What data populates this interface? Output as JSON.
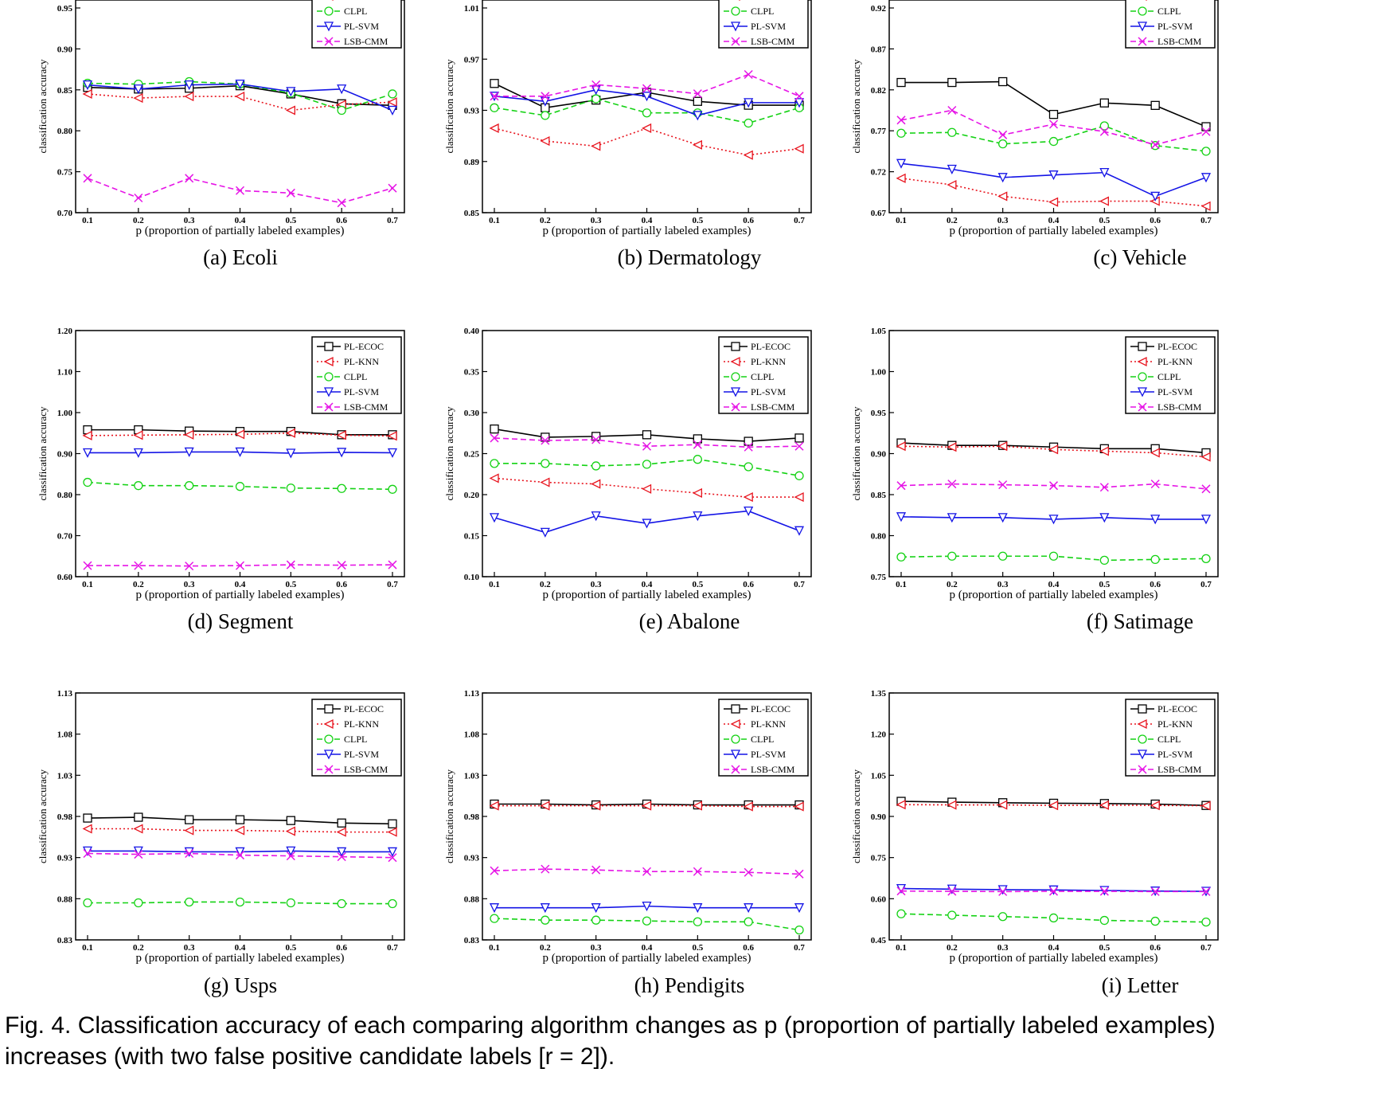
{
  "figure": {
    "caption_line1": "Fig. 4.  Classification accuracy of each comparing algorithm changes as p (proportion of partially labeled examples)",
    "caption_line2": "increases (with two false positive candidate labels [r = 2])."
  },
  "legend": [
    {
      "name": "PL-ECOC",
      "color": "#000000",
      "marker": "square",
      "dash": "solid"
    },
    {
      "name": "PL-KNN",
      "color": "#e8141e",
      "marker": "triangle-left",
      "dash": "dotted"
    },
    {
      "name": "CLPL",
      "color": "#14d214",
      "marker": "circle",
      "dash": "dashed"
    },
    {
      "name": "PL-SVM",
      "color": "#1414e6",
      "marker": "triangle-down",
      "dash": "solid"
    },
    {
      "name": "LSB-CMM",
      "color": "#e614e6",
      "marker": "x",
      "dash": "dashed"
    }
  ],
  "chart_data": [
    {
      "type": "line",
      "caption": "(a) Ecoli",
      "xlabel": "p (proportion of partially labeled examples)",
      "ylabel": "classification accuracy",
      "x": [
        0.1,
        0.2,
        0.3,
        0.4,
        0.5,
        0.6,
        0.7
      ],
      "xlim": [
        0.1,
        0.7
      ],
      "ylim": [
        0.7,
        1.0
      ],
      "yticks": [
        "0.70",
        "0.75",
        "0.80",
        "0.85",
        "0.90",
        "0.95"
      ],
      "series": [
        {
          "name": "PL-ECOC",
          "values": [
            0.853,
            0.851,
            0.852,
            0.855,
            0.845,
            0.833,
            0.831
          ]
        },
        {
          "name": "PL-KNN",
          "values": [
            0.845,
            0.84,
            0.842,
            0.842,
            0.825,
            0.832,
            0.835
          ]
        },
        {
          "name": "CLPL",
          "values": [
            0.858,
            0.857,
            0.86,
            0.857,
            0.846,
            0.825,
            0.845
          ]
        },
        {
          "name": "PL-SVM",
          "values": [
            0.856,
            0.851,
            0.856,
            0.857,
            0.848,
            0.851,
            0.825
          ]
        },
        {
          "name": "LSB-CMM",
          "values": [
            0.742,
            0.718,
            0.742,
            0.727,
            0.724,
            0.712,
            0.73
          ]
        }
      ]
    },
    {
      "type": "line",
      "caption": "(b) Dermatology",
      "xlabel": "p (proportion of partially labeled examples)",
      "ylabel": "classification accuracy",
      "x": [
        0.1,
        0.2,
        0.3,
        0.4,
        0.5,
        0.6,
        0.7
      ],
      "xlim": [
        0.1,
        0.7
      ],
      "ylim": [
        0.85,
        1.05
      ],
      "yticks": [
        "0.85",
        "0.89",
        "0.93",
        "0.97",
        "1.01"
      ],
      "series": [
        {
          "name": "PL-ECOC",
          "values": [
            0.951,
            0.932,
            0.938,
            0.944,
            0.937,
            0.934,
            0.934
          ]
        },
        {
          "name": "PL-KNN",
          "values": [
            0.916,
            0.906,
            0.902,
            0.916,
            0.903,
            0.895,
            0.9
          ]
        },
        {
          "name": "CLPL",
          "values": [
            0.932,
            0.926,
            0.939,
            0.928,
            0.928,
            0.92,
            0.932
          ]
        },
        {
          "name": "PL-SVM",
          "values": [
            0.941,
            0.937,
            0.946,
            0.941,
            0.926,
            0.936,
            0.936
          ]
        },
        {
          "name": "LSB-CMM",
          "values": [
            0.941,
            0.941,
            0.95,
            0.947,
            0.943,
            0.958,
            0.941
          ]
        }
      ]
    },
    {
      "type": "line",
      "caption": "(c) Vehicle",
      "xlabel": "p (proportion of partially labeled examples)",
      "ylabel": "classification accuracy",
      "x": [
        0.1,
        0.2,
        0.3,
        0.4,
        0.5,
        0.6,
        0.7
      ],
      "xlim": [
        0.1,
        0.7
      ],
      "ylim": [
        0.67,
        0.95
      ],
      "yticks": [
        "0.67",
        "0.72",
        "0.77",
        "0.82",
        "0.87",
        "0.92"
      ],
      "series": [
        {
          "name": "PL-ECOC",
          "values": [
            0.829,
            0.829,
            0.83,
            0.79,
            0.804,
            0.801,
            0.775
          ]
        },
        {
          "name": "PL-KNN",
          "values": [
            0.712,
            0.704,
            0.69,
            0.683,
            0.684,
            0.684,
            0.678
          ]
        },
        {
          "name": "CLPL",
          "values": [
            0.767,
            0.768,
            0.754,
            0.757,
            0.776,
            0.752,
            0.745
          ]
        },
        {
          "name": "PL-SVM",
          "values": [
            0.73,
            0.723,
            0.713,
            0.716,
            0.719,
            0.69,
            0.713
          ]
        },
        {
          "name": "LSB-CMM",
          "values": [
            0.783,
            0.795,
            0.765,
            0.778,
            0.769,
            0.753,
            0.769
          ]
        }
      ]
    },
    {
      "type": "line",
      "caption": "(d) Segment",
      "xlabel": "p (proportion of partially labeled examples)",
      "ylabel": "classification accuracy",
      "x": [
        0.1,
        0.2,
        0.3,
        0.4,
        0.5,
        0.6,
        0.7
      ],
      "xlim": [
        0.1,
        0.7
      ],
      "ylim": [
        0.6,
        1.2
      ],
      "yticks": [
        "0.60",
        "0.70",
        "0.80",
        "0.90",
        "1.00",
        "1.10",
        "1.20"
      ],
      "series": [
        {
          "name": "PL-ECOC",
          "values": [
            0.958,
            0.958,
            0.955,
            0.954,
            0.954,
            0.946,
            0.946
          ]
        },
        {
          "name": "PL-KNN",
          "values": [
            0.944,
            0.945,
            0.946,
            0.947,
            0.95,
            0.945,
            0.943
          ]
        },
        {
          "name": "CLPL",
          "values": [
            0.83,
            0.822,
            0.822,
            0.82,
            0.816,
            0.815,
            0.813
          ]
        },
        {
          "name": "PL-SVM",
          "values": [
            0.902,
            0.902,
            0.904,
            0.904,
            0.901,
            0.903,
            0.902
          ]
        },
        {
          "name": "LSB-CMM",
          "values": [
            0.627,
            0.627,
            0.626,
            0.627,
            0.629,
            0.628,
            0.629
          ]
        }
      ]
    },
    {
      "type": "line",
      "caption": "(e) Abalone",
      "xlabel": "p (proportion of partially labeled examples)",
      "ylabel": "classification accuracy",
      "x": [
        0.1,
        0.2,
        0.3,
        0.4,
        0.5,
        0.6,
        0.7
      ],
      "xlim": [
        0.1,
        0.7
      ],
      "ylim": [
        0.1,
        0.4
      ],
      "yticks": [
        "0.10",
        "0.15",
        "0.20",
        "0.25",
        "0.30",
        "0.35",
        "0.40"
      ],
      "series": [
        {
          "name": "PL-ECOC",
          "values": [
            0.28,
            0.27,
            0.271,
            0.273,
            0.268,
            0.265,
            0.269
          ]
        },
        {
          "name": "PL-KNN",
          "values": [
            0.22,
            0.215,
            0.213,
            0.207,
            0.202,
            0.197,
            0.197
          ]
        },
        {
          "name": "CLPL",
          "values": [
            0.238,
            0.238,
            0.235,
            0.237,
            0.243,
            0.234,
            0.223
          ]
        },
        {
          "name": "PL-SVM",
          "values": [
            0.172,
            0.154,
            0.174,
            0.165,
            0.174,
            0.18,
            0.156
          ]
        },
        {
          "name": "LSB-CMM",
          "values": [
            0.269,
            0.266,
            0.267,
            0.259,
            0.261,
            0.258,
            0.259
          ]
        }
      ]
    },
    {
      "type": "line",
      "caption": "(f) Satimage",
      "xlabel": "p (proportion of partially labeled examples)",
      "ylabel": "classification accuracy",
      "x": [
        0.1,
        0.2,
        0.3,
        0.4,
        0.5,
        0.6,
        0.7
      ],
      "xlim": [
        0.1,
        0.7
      ],
      "ylim": [
        0.75,
        1.05
      ],
      "yticks": [
        "0.75",
        "0.80",
        "0.85",
        "0.90",
        "0.95",
        "1.00",
        "1.05"
      ],
      "series": [
        {
          "name": "PL-ECOC",
          "values": [
            0.913,
            0.91,
            0.91,
            0.908,
            0.906,
            0.906,
            0.901
          ]
        },
        {
          "name": "PL-KNN",
          "values": [
            0.909,
            0.908,
            0.909,
            0.905,
            0.903,
            0.901,
            0.896
          ]
        },
        {
          "name": "CLPL",
          "values": [
            0.774,
            0.775,
            0.775,
            0.775,
            0.77,
            0.771,
            0.772
          ]
        },
        {
          "name": "PL-SVM",
          "values": [
            0.823,
            0.822,
            0.822,
            0.82,
            0.822,
            0.82,
            0.82
          ]
        },
        {
          "name": "LSB-CMM",
          "values": [
            0.861,
            0.863,
            0.862,
            0.861,
            0.859,
            0.863,
            0.857
          ]
        }
      ]
    },
    {
      "type": "line",
      "caption": "(g) Usps",
      "xlabel": "p (proportion of partially labeled examples)",
      "ylabel": "classification accuracy",
      "x": [
        0.1,
        0.2,
        0.3,
        0.4,
        0.5,
        0.6,
        0.7
      ],
      "xlim": [
        0.1,
        0.7
      ],
      "ylim": [
        0.83,
        1.13
      ],
      "yticks": [
        "0.83",
        "0.88",
        "0.93",
        "0.98",
        "1.03",
        "1.08",
        "1.13"
      ],
      "series": [
        {
          "name": "PL-ECOC",
          "values": [
            0.978,
            0.979,
            0.976,
            0.976,
            0.975,
            0.972,
            0.971
          ]
        },
        {
          "name": "PL-KNN",
          "values": [
            0.965,
            0.965,
            0.963,
            0.963,
            0.962,
            0.961,
            0.961
          ]
        },
        {
          "name": "CLPL",
          "values": [
            0.875,
            0.875,
            0.876,
            0.876,
            0.875,
            0.874,
            0.874
          ]
        },
        {
          "name": "PL-SVM",
          "values": [
            0.938,
            0.938,
            0.937,
            0.937,
            0.938,
            0.937,
            0.937
          ]
        },
        {
          "name": "LSB-CMM",
          "values": [
            0.935,
            0.934,
            0.935,
            0.933,
            0.932,
            0.931,
            0.93
          ]
        }
      ]
    },
    {
      "type": "line",
      "caption": "(h) Pendigits",
      "xlabel": "p (proportion of partially labeled examples)",
      "ylabel": "classification accuracy",
      "x": [
        0.1,
        0.2,
        0.3,
        0.4,
        0.5,
        0.6,
        0.7
      ],
      "xlim": [
        0.1,
        0.7
      ],
      "ylim": [
        0.83,
        1.13
      ],
      "yticks": [
        "0.83",
        "0.88",
        "0.93",
        "0.98",
        "1.03",
        "1.08",
        "1.13"
      ],
      "series": [
        {
          "name": "PL-ECOC",
          "values": [
            0.995,
            0.995,
            0.994,
            0.995,
            0.994,
            0.994,
            0.994
          ]
        },
        {
          "name": "PL-KNN",
          "values": [
            0.993,
            0.993,
            0.993,
            0.993,
            0.993,
            0.992,
            0.992
          ]
        },
        {
          "name": "CLPL",
          "values": [
            0.856,
            0.854,
            0.854,
            0.853,
            0.852,
            0.852,
            0.842
          ]
        },
        {
          "name": "PL-SVM",
          "values": [
            0.869,
            0.869,
            0.869,
            0.871,
            0.869,
            0.869,
            0.869
          ]
        },
        {
          "name": "LSB-CMM",
          "values": [
            0.914,
            0.916,
            0.915,
            0.913,
            0.913,
            0.912,
            0.91
          ]
        }
      ]
    },
    {
      "type": "line",
      "caption": "(i) Letter",
      "xlabel": "p (proportion of partially labeled examples)",
      "ylabel": "classification accuracy",
      "x": [
        0.1,
        0.2,
        0.3,
        0.4,
        0.5,
        0.6,
        0.7
      ],
      "xlim": [
        0.1,
        0.7
      ],
      "ylim": [
        0.45,
        1.35
      ],
      "yticks": [
        "0.45",
        "0.60",
        "0.75",
        "0.90",
        "1.05",
        "1.20",
        "1.35"
      ],
      "series": [
        {
          "name": "PL-ECOC",
          "values": [
            0.955,
            0.952,
            0.95,
            0.948,
            0.947,
            0.945,
            0.94
          ]
        },
        {
          "name": "PL-KNN",
          "values": [
            0.943,
            0.942,
            0.942,
            0.94,
            0.941,
            0.94,
            0.939
          ]
        },
        {
          "name": "CLPL",
          "values": [
            0.545,
            0.54,
            0.535,
            0.53,
            0.521,
            0.518,
            0.515
          ]
        },
        {
          "name": "PL-SVM",
          "values": [
            0.637,
            0.635,
            0.633,
            0.632,
            0.63,
            0.628,
            0.627
          ]
        },
        {
          "name": "LSB-CMM",
          "values": [
            0.628,
            0.627,
            0.626,
            0.627,
            0.627,
            0.626,
            0.626
          ]
        }
      ]
    }
  ]
}
